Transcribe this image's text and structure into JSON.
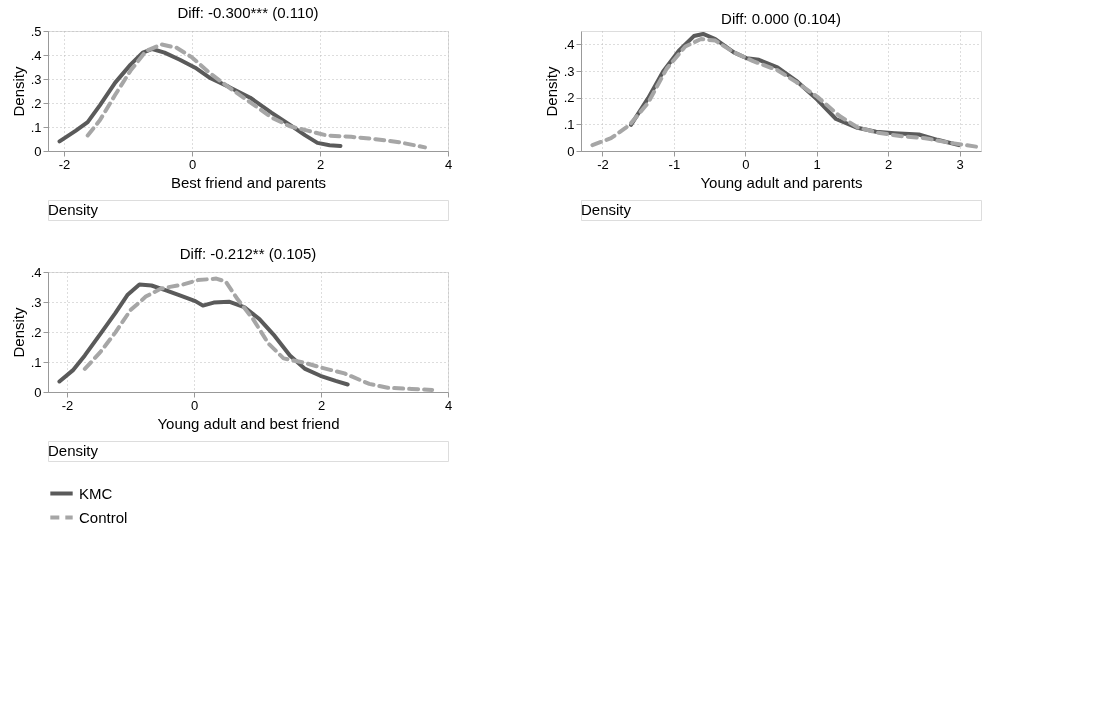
{
  "chart_data": [
    {
      "type": "line",
      "title": "Diff: -0.300*** (0.110)",
      "xlabel": "Best friend and parents",
      "ylabel": "Density",
      "annotations": [
        "Density"
      ],
      "xlim": [
        -2.25,
        4
      ],
      "ylim": [
        0,
        0.5
      ],
      "xticks": [
        -2,
        0,
        2,
        4
      ],
      "yticks": [
        0,
        {
          "value": 0.1,
          "label": ".1"
        },
        {
          "value": 0.2,
          "label": ".2"
        },
        {
          "value": 0.3,
          "label": ".3"
        },
        {
          "value": 0.4,
          "label": ".4"
        },
        {
          "value": 0.5,
          "label": ".5"
        }
      ],
      "grid": true,
      "legend": "bottom",
      "series": [
        {
          "name": "KMC",
          "color": "#5a5a5a",
          "line_style": "solid",
          "x": [
            -2.07,
            -1.82,
            -1.63,
            -1.44,
            -1.2,
            -0.96,
            -0.77,
            -0.62,
            -0.43,
            -0.19,
            0.05,
            0.29,
            0.57,
            0.91,
            1.24,
            1.53,
            1.77,
            1.96,
            2.15,
            2.32
          ],
          "values": [
            0.04,
            0.084,
            0.12,
            0.19,
            0.285,
            0.36,
            0.41,
            0.425,
            0.41,
            0.38,
            0.347,
            0.303,
            0.268,
            0.222,
            0.16,
            0.109,
            0.065,
            0.034,
            0.024,
            0.021
          ]
        },
        {
          "name": "Control",
          "color": "#a6a6a6",
          "line_style": "dashed",
          "x": [
            -1.63,
            -1.44,
            -1.2,
            -0.96,
            -0.72,
            -0.48,
            -0.24,
            0,
            0.29,
            0.57,
            0.91,
            1.24,
            1.53,
            1.82,
            2.1,
            2.49,
            2.87,
            3.25,
            3.64
          ],
          "values": [
            0.065,
            0.128,
            0.234,
            0.335,
            0.416,
            0.444,
            0.43,
            0.39,
            0.322,
            0.266,
            0.203,
            0.14,
            0.103,
            0.084,
            0.065,
            0.059,
            0.049,
            0.036,
            0.015
          ]
        }
      ]
    },
    {
      "type": "line",
      "title": "Diff: 0.000 (0.104)",
      "xlabel": "Young adult and parents",
      "ylabel": "Density",
      "annotations": [
        "Density"
      ],
      "xlim": [
        -2.3,
        3.3
      ],
      "ylim": [
        0,
        0.45
      ],
      "xticks": [
        -2,
        -1,
        0,
        1,
        2,
        3
      ],
      "yticks": [
        0,
        {
          "value": 0.1,
          "label": ".1"
        },
        {
          "value": 0.2,
          "label": ".2"
        },
        {
          "value": 0.3,
          "label": ".3"
        },
        {
          "value": 0.4,
          "label": ".4"
        }
      ],
      "grid": true,
      "legend": "bottom",
      "series": [
        {
          "name": "KMC",
          "color": "#5a5a5a",
          "line_style": "solid",
          "x": [
            -1.6,
            -1.36,
            -1.15,
            -0.93,
            -0.72,
            -0.59,
            -0.42,
            -0.16,
            0.02,
            0.19,
            0.45,
            0.71,
            1.01,
            1.27,
            1.57,
            1.83,
            2.09,
            2.43,
            2.69,
            2.99
          ],
          "values": [
            0.098,
            0.198,
            0.298,
            0.376,
            0.431,
            0.439,
            0.42,
            0.37,
            0.348,
            0.342,
            0.314,
            0.264,
            0.192,
            0.12,
            0.087,
            0.072,
            0.067,
            0.062,
            0.042,
            0.022
          ]
        },
        {
          "name": "Control",
          "color": "#a6a6a6",
          "line_style": "dashed",
          "x": [
            -2.14,
            -1.88,
            -1.62,
            -1.36,
            -1.1,
            -0.84,
            -0.62,
            -0.42,
            -0.16,
            0.11,
            0.45,
            0.71,
            1.01,
            1.32,
            1.57,
            1.83,
            2.17,
            2.52,
            2.86,
            3.29
          ],
          "values": [
            0.022,
            0.048,
            0.098,
            0.181,
            0.309,
            0.392,
            0.42,
            0.414,
            0.37,
            0.337,
            0.303,
            0.259,
            0.203,
            0.131,
            0.089,
            0.07,
            0.056,
            0.048,
            0.031,
            0.014
          ]
        }
      ]
    },
    {
      "type": "line",
      "title": "Diff: -0.212** (0.105)",
      "xlabel": "Young adult and best friend",
      "ylabel": "Density",
      "annotations": [
        "Density"
      ],
      "xlim": [
        -2.3,
        4
      ],
      "ylim": [
        0,
        0.4
      ],
      "xticks": [
        -2,
        0,
        2,
        4
      ],
      "yticks": [
        0,
        {
          "value": 0.1,
          "label": ".1"
        },
        {
          "value": 0.2,
          "label": ".2"
        },
        {
          "value": 0.3,
          "label": ".3"
        },
        {
          "value": 0.4,
          "label": ".4"
        }
      ],
      "grid": true,
      "legend": "bottom",
      "series": [
        {
          "name": "KMC",
          "color": "#5a5a5a",
          "line_style": "solid",
          "x": [
            -2.12,
            -1.91,
            -1.72,
            -1.48,
            -1.24,
            -1.05,
            -0.86,
            -0.67,
            -0.43,
            -0.17,
            0.02,
            0.14,
            0.31,
            0.55,
            0.79,
            1.03,
            1.27,
            1.51,
            1.75,
            1.99,
            2.23,
            2.42
          ],
          "values": [
            0.035,
            0.072,
            0.122,
            0.192,
            0.263,
            0.323,
            0.358,
            0.355,
            0.338,
            0.318,
            0.303,
            0.288,
            0.298,
            0.301,
            0.283,
            0.243,
            0.187,
            0.122,
            0.077,
            0.054,
            0.037,
            0.025
          ]
        },
        {
          "name": "Control",
          "color": "#a6a6a6",
          "line_style": "dashed",
          "x": [
            -1.72,
            -1.48,
            -1.24,
            -1.0,
            -0.76,
            -0.52,
            -0.18,
            0.06,
            0.35,
            0.5,
            0.69,
            0.93,
            1.17,
            1.41,
            1.75,
            1.99,
            2.37,
            2.76,
            3.05,
            3.43,
            3.75
          ],
          "values": [
            0.077,
            0.132,
            0.198,
            0.273,
            0.318,
            0.345,
            0.358,
            0.373,
            0.378,
            0.368,
            0.308,
            0.243,
            0.162,
            0.112,
            0.097,
            0.082,
            0.062,
            0.027,
            0.014,
            0.01,
            0.007
          ]
        }
      ]
    }
  ]
}
